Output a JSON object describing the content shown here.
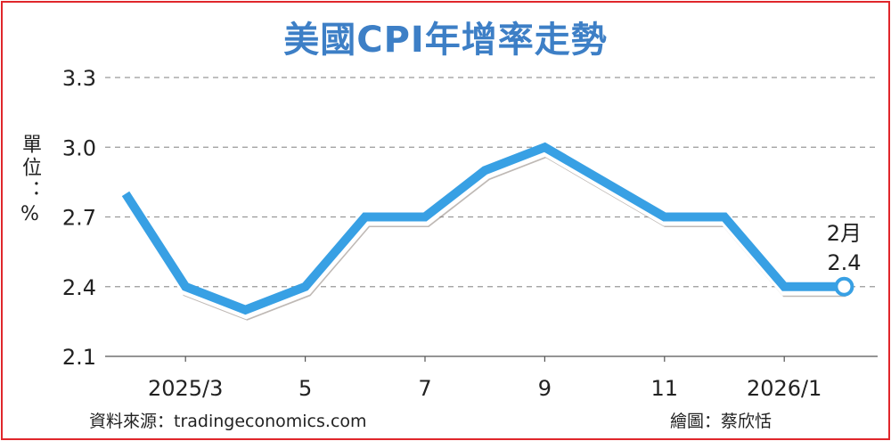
{
  "chart_data": {
    "type": "line",
    "title": "美國CPI年增率走勢",
    "ylabel": "單位：%",
    "x": [
      "2025/2",
      "2025/3",
      "2025/4",
      "2025/5",
      "2025/6",
      "2025/7",
      "2025/8",
      "2025/9",
      "2025/10",
      "2025/11",
      "2025/12",
      "2026/1",
      "2026/2"
    ],
    "xtick_labels": [
      "2025/3",
      "5",
      "7",
      "9",
      "11",
      "2026/1"
    ],
    "xtick_indices": [
      1,
      3,
      5,
      7,
      9,
      11
    ],
    "values": [
      2.8,
      2.4,
      2.3,
      2.4,
      2.7,
      2.7,
      2.9,
      3.0,
      null,
      2.7,
      2.7,
      2.4,
      2.4
    ],
    "ylim": [
      2.1,
      3.3
    ],
    "yticks": [
      "2.1",
      "2.4",
      "2.7",
      "3.0",
      "3.3"
    ],
    "grid": true,
    "annotation": {
      "month": "2月",
      "value": "2.4"
    },
    "line_color": "#38a0e4",
    "title_color": "#3d7fc6"
  },
  "source": "資料來源：tradingeconomics.com",
  "credit": "繪圖：蔡欣恬"
}
